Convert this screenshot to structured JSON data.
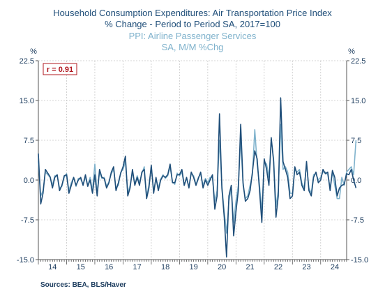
{
  "chart_data": {
    "type": "line",
    "title": "Household Consumption Expenditures: Air Transportation Price Index",
    "subtitle": "% Change - Period to Period    SA, 2017=100",
    "title2": "PPI: Airline Passenger Services",
    "subtitle2": "SA, M/M %Chg",
    "left_unit": "%",
    "right_unit": "%",
    "y_ticks": [
      "22.5",
      "15.0",
      "7.5",
      "0.0",
      "-7.5",
      "-15.0"
    ],
    "y_tick_values": [
      22.5,
      15.0,
      7.5,
      0.0,
      -7.5,
      -15.0
    ],
    "ylim": [
      -15.0,
      22.5
    ],
    "x_tick_labels": [
      "14",
      "15",
      "16",
      "17",
      "18",
      "19",
      "20",
      "21",
      "22",
      "23",
      "24"
    ],
    "xlim": [
      2014.0,
      2024.92
    ],
    "annotation": "r = 0.91",
    "grid": true,
    "source": "Sources:  BEA, BLS/Haver",
    "colors": {
      "series1": "#1f4e79",
      "series2": "#7fb2cc",
      "annotation": "#b0181f"
    },
    "series": [
      {
        "name": "Household Consumption Expenditures: Air Transportation Price Index",
        "start_year": 2014.0,
        "step": 0.0833333,
        "values": [
          5.0,
          -4.5,
          -2.5,
          2.0,
          1.3,
          0.6,
          -1.5,
          0.5,
          1.0,
          -2.0,
          -1.0,
          0.8,
          1.0,
          -2.5,
          -1.0,
          0.5,
          -1.0,
          0.0,
          0.5,
          -1.0,
          1.0,
          -1.2,
          0.0,
          -2.5,
          1.0,
          -3.0,
          2.0,
          0.5,
          0.3,
          -1.5,
          -0.5,
          1.5,
          2.5,
          -2.0,
          -0.5,
          1.3,
          2.5,
          4.5,
          -3.0,
          -1.5,
          2.0,
          -1.0,
          0.5,
          -1.0,
          1.5,
          2.0,
          -3.5,
          -1.5,
          2.8,
          -2.5,
          0.5,
          -2.0,
          0.0,
          0.8,
          0.5,
          1.0,
          3.0,
          -0.5,
          -0.5,
          1.0,
          1.0,
          2.0,
          -1.0,
          0.5,
          -1.5,
          1.5,
          0.5,
          -1.0,
          0.3,
          1.5,
          -1.5,
          0.0,
          -1.0,
          0.0,
          1.0,
          -5.5,
          -3.0,
          12.5,
          -1.5,
          -7.0,
          -14.5,
          -3.0,
          -1.0,
          -10.5,
          -6.0,
          -2.0,
          10.5,
          -0.5,
          -4.0,
          -3.5,
          -2.0,
          1.5,
          5.5,
          4.0,
          -2.0,
          -8.0,
          4.0,
          2.0,
          -1.0,
          8.0,
          3.5,
          -7.0,
          -3.0,
          15.5,
          3.5,
          2.0,
          0.5,
          -3.5,
          -3.0,
          2.5,
          1.0,
          1.5,
          -1.0,
          -2.0,
          3.5,
          -2.0,
          -3.0,
          0.5,
          1.5,
          -0.5,
          0.0,
          2.0,
          1.2,
          1.5,
          -2.0,
          1.8,
          0.5,
          -3.0,
          -1.5,
          -1.0,
          -0.8,
          1.2,
          1.0,
          2.0,
          0.0,
          -1.5
        ]
      },
      {
        "name": "PPI: Airline Passenger Services",
        "start_year": 2014.0,
        "step": 0.0833333,
        "values": [
          3.5,
          -3.0,
          -2.0,
          1.5,
          1.0,
          0.5,
          -1.0,
          0.8,
          0.8,
          -1.5,
          -1.2,
          0.5,
          1.2,
          -2.0,
          -0.5,
          0.5,
          -1.2,
          0.3,
          0.2,
          -0.8,
          0.5,
          -1.0,
          0.5,
          -2.0,
          3.0,
          -2.5,
          1.5,
          0.3,
          0.5,
          -1.2,
          -0.3,
          1.2,
          2.0,
          -1.5,
          -1.0,
          1.5,
          2.0,
          3.5,
          -2.5,
          -1.0,
          1.5,
          -0.8,
          0.8,
          -0.5,
          1.2,
          2.5,
          -3.0,
          -1.0,
          2.5,
          -2.0,
          0.3,
          -1.5,
          0.2,
          1.0,
          0.3,
          0.8,
          2.5,
          -0.3,
          -0.8,
          1.3,
          0.8,
          1.5,
          -1.0,
          0.3,
          -1.2,
          1.2,
          0.8,
          -0.8,
          0.5,
          1.2,
          -1.0,
          0.3,
          -0.5,
          0.5,
          0.5,
          -4.0,
          -2.0,
          7.5,
          -1.0,
          -6.0,
          -10.0,
          -4.0,
          -1.5,
          -8.0,
          -4.0,
          -1.0,
          8.0,
          -1.0,
          -3.5,
          -3.0,
          -1.0,
          1.0,
          9.5,
          3.0,
          -1.0,
          -6.0,
          3.5,
          3.0,
          0.5,
          7.5,
          4.0,
          -5.0,
          -2.0,
          10.5,
          2.0,
          2.5,
          1.5,
          -2.5,
          -2.5,
          2.0,
          1.5,
          2.0,
          -0.5,
          -1.5,
          3.0,
          -1.5,
          -2.5,
          1.0,
          1.2,
          0.0,
          0.5,
          1.5,
          1.5,
          1.0,
          -1.5,
          1.5,
          -1.0,
          -3.5,
          -3.5,
          0.5,
          -1.0,
          1.5,
          2.0,
          2.5,
          1.0,
          7.5
        ]
      }
    ]
  }
}
